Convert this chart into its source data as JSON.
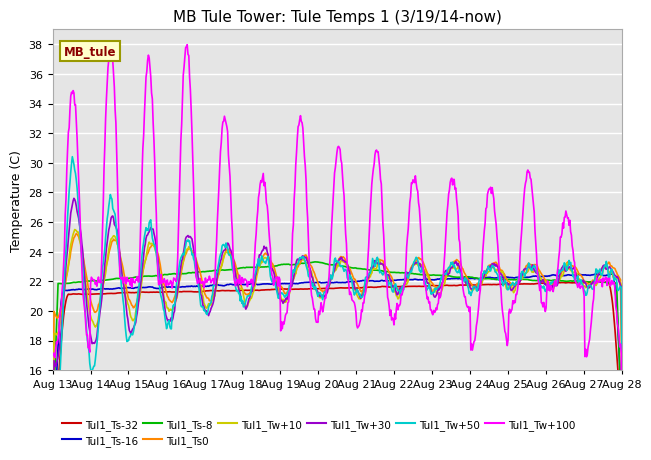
{
  "title": "MB Tule Tower: Tule Temps 1 (3/19/14-now)",
  "ylabel": "Temperature (C)",
  "station_label": "MB_tule",
  "ylim": [
    16,
    39
  ],
  "yticks": [
    16,
    18,
    20,
    22,
    24,
    26,
    28,
    30,
    32,
    34,
    36,
    38
  ],
  "date_labels": [
    "Aug 13",
    "Aug 14",
    "Aug 15",
    "Aug 16",
    "Aug 17",
    "Aug 18",
    "Aug 19",
    "Aug 20",
    "Aug 21",
    "Aug 22",
    "Aug 23",
    "Aug 24",
    "Aug 25",
    "Aug 26",
    "Aug 27",
    "Aug 28"
  ],
  "series_order": [
    "Tul1_Ts-32",
    "Tul1_Ts-16",
    "Tul1_Ts-8",
    "Tul1_Ts0",
    "Tul1_Tw+10",
    "Tul1_Tw+30",
    "Tul1_Tw+50",
    "Tul1_Tw+100"
  ],
  "series_colors": {
    "Tul1_Ts-32": "#cc0000",
    "Tul1_Ts-16": "#0000cc",
    "Tul1_Ts-8": "#00bb00",
    "Tul1_Ts0": "#ff8800",
    "Tul1_Tw+10": "#cccc00",
    "Tul1_Tw+30": "#9900cc",
    "Tul1_Tw+50": "#00cccc",
    "Tul1_Tw+100": "#ff00ff"
  },
  "bg_color": "#ffffff",
  "plot_bg": "#e5e5e5",
  "grid_color": "#ffffff",
  "title_fontsize": 11,
  "label_fontsize": 9,
  "tick_fontsize": 8
}
